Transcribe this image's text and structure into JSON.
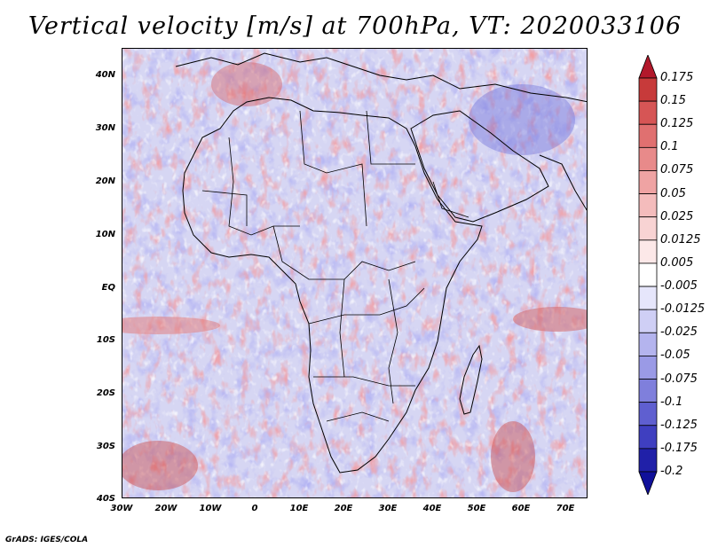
{
  "title": "Vertical velocity [m/s] at 700hPa, VT: 2020033106",
  "footer": "GrADS: IGES/COLA",
  "axes": {
    "lat_labels": [
      "40N",
      "30N",
      "20N",
      "10N",
      "EQ",
      "10S",
      "20S",
      "30S",
      "40S"
    ],
    "lat_values": [
      40,
      30,
      20,
      10,
      0,
      -10,
      -20,
      -30,
      -40
    ],
    "lon_labels": [
      "30W",
      "20W",
      "10W",
      "0",
      "10E",
      "20E",
      "30E",
      "40E",
      "50E",
      "60E",
      "70E"
    ],
    "lon_values": [
      -30,
      -20,
      -10,
      0,
      10,
      20,
      30,
      40,
      50,
      60,
      70
    ]
  },
  "colorbar": {
    "labels": [
      "0.175",
      "0.15",
      "0.125",
      "0.1",
      "0.075",
      "0.05",
      "0.025",
      "0.0125",
      "0.005",
      "-0.005",
      "-0.0125",
      "-0.025",
      "-0.05",
      "-0.075",
      "-0.1",
      "-0.125",
      "-0.175",
      "-0.2"
    ],
    "colors": [
      "#b2182b",
      "#c73a3a",
      "#d65555",
      "#e07070",
      "#e88a8a",
      "#efa3a3",
      "#f4bcbc",
      "#f8d3d3",
      "#fce8e8",
      "#ffffff",
      "#e6e6fb",
      "#cfcff5",
      "#b4b4ee",
      "#9a9ae6",
      "#7f7fdc",
      "#5f5fd0",
      "#3f3fc0",
      "#2020a8",
      "#10109a"
    ]
  },
  "map": {
    "extent": {
      "lon_min": -30,
      "lon_max": 75,
      "lat_min": -40,
      "lat_max": 45
    },
    "ocean_tint": "#d9d9f6",
    "land_tint": "#ece6f4"
  }
}
